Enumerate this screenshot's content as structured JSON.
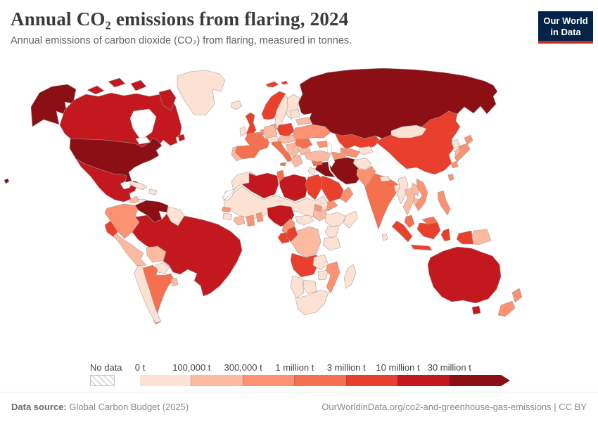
{
  "header": {
    "title": "Annual CO₂ emissions from flaring, 2024",
    "subtitle": "Annual emissions of carbon dioxide (CO₂) from flaring, measured in tonnes."
  },
  "logo": {
    "line1": "Our World",
    "line2": "in Data",
    "bg_color": "#052346",
    "accent_color": "#cd2d28"
  },
  "legend": {
    "no_data_label": "No data"
  },
  "footer": {
    "source_label": "Data source:",
    "source_text": "Global Carbon Budget (2025)",
    "link_text": "OurWorldinData.org/co2-and-greenhouse-gas-emissions | CC BY"
  },
  "chart_data": {
    "type": "heatmap",
    "subtype": "world-choropleth-map",
    "title": "Annual CO₂ emissions from flaring, 2024",
    "unit": "tonnes CO₂",
    "legend_position": "bottom",
    "no_data": {
      "label": "No data",
      "fill": "hatched"
    },
    "bins": [
      {
        "label": "0 t",
        "color": "#fde2d4"
      },
      {
        "label": "100,000 t",
        "color": "#fcbba1"
      },
      {
        "label": "300,000 t",
        "color": "#fc9272"
      },
      {
        "label": "1 million t",
        "color": "#f4704e"
      },
      {
        "label": "3 million t",
        "color": "#e8402c"
      },
      {
        "label": "10 million t",
        "color": "#c3181d"
      },
      {
        "label": "30 million t",
        "color": "#8b0f15"
      }
    ],
    "values": {
      "united-states": 6,
      "canada": 5,
      "greenland": 0,
      "mexico": 5,
      "guatemala": 1,
      "central-america": 0,
      "cuba": 0,
      "hispaniola": 0,
      "colombia": 2,
      "venezuela": 6,
      "guyana-suriname": 0,
      "ecuador": 4,
      "peru": 1,
      "brazil": 5,
      "bolivia": 1,
      "paraguay": 0,
      "chile": 0,
      "argentina": 3,
      "uruguay": 1,
      "iceland": 0,
      "united-kingdom": 4,
      "ireland": 0,
      "norway": 4,
      "sweden": 0,
      "finland": 0,
      "denmark": 2,
      "germany": 1,
      "benelux": 2,
      "france": 3,
      "spain": 3,
      "portugal": 1,
      "italy": 3,
      "alpine-states": 0,
      "poland": 4,
      "central-europe": 1,
      "balkans": 1,
      "greece": 1,
      "romania": 3,
      "bulgaria": 1,
      "ukraine": 2,
      "belarus": 1,
      "baltics": 0,
      "turkey": 1,
      "russia": 6,
      "kazakhstan": 4,
      "caucasus": 2,
      "uzbekistan": 2,
      "turkmenistan": 2,
      "kyrgyzstan-tajikistan": 0,
      "afghanistan": 0,
      "pakistan": 2,
      "iran": 6,
      "iraq": 6,
      "syria": 3,
      "jordan-israel": 0,
      "saudi-arabia": 4,
      "yemen": 2,
      "oman": 2,
      "morocco": 0,
      "western-sahara": null,
      "algeria": 5,
      "tunisia": 3,
      "libya": 5,
      "egypt": 4,
      "sahara-sahel": 0,
      "senegal": 2,
      "guinea": 0,
      "ivory-coast": 1,
      "ghana": 2,
      "benin-togo": 2,
      "nigeria": 5,
      "cameroon": 2,
      "central-african-republic": 0,
      "south-sudan": 1,
      "eritrea": 2,
      "ethiopia": 0,
      "somalia": 0,
      "kenya": 0,
      "tanzania": 0,
      "dr-congo": 1,
      "gabon": 4,
      "congo": 4,
      "angola": 4,
      "zambia": 0,
      "zimbabwe": 0,
      "mozambique": 2,
      "namibia": 0,
      "botswana": 0,
      "south-africa": 0,
      "madagascar": 0,
      "mongolia": 0,
      "china": 4,
      "nepal": 0,
      "india": 3,
      "bangladesh": 0,
      "sri-lanka": 0,
      "myanmar": 0,
      "thailand": 1,
      "laos": 1,
      "cambodia": 1,
      "vietnam": 2,
      "malaysia": 3,
      "indonesia": 4,
      "papua-new-guinea": 1,
      "philippines": 2,
      "taiwan": 2,
      "japan": 2,
      "south-korea": 1,
      "north-korea": 0,
      "australia": 5,
      "new-zealand": 2
    }
  }
}
